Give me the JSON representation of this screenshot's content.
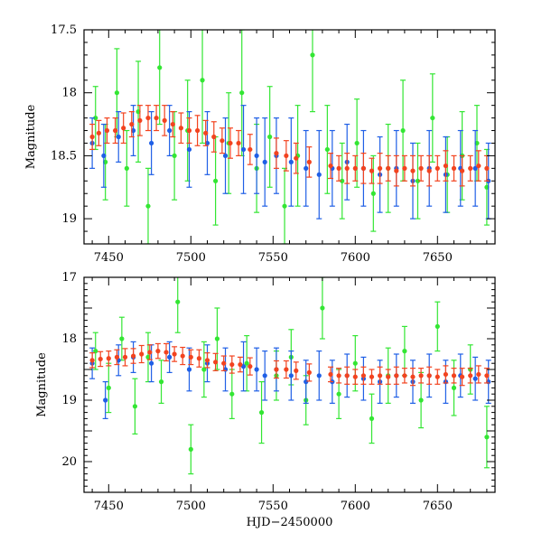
{
  "chart_data": [
    {
      "type": "scatter",
      "title": "",
      "xlabel": "",
      "ylabel": "Magnitude",
      "xlim": [
        7435,
        7685
      ],
      "ylim": [
        19.2,
        17.5
      ],
      "y_inverted": true,
      "error_bars": true,
      "grid": false,
      "x_ticks": [
        7450,
        7500,
        7550,
        7600,
        7650
      ],
      "x_tick_labels": [
        "7450",
        "7500",
        "7550",
        "7600",
        "7650"
      ],
      "y_ticks": [
        17.5,
        18,
        18.5,
        19
      ],
      "y_tick_labels": [
        "17.5",
        "18",
        "18.5",
        "19"
      ],
      "series": [
        {
          "color": "#33e633",
          "x": [
            7442,
            7448,
            7455,
            7461,
            7468,
            7474,
            7481,
            7490,
            7498,
            7507,
            7515,
            7523,
            7531,
            7540,
            7548,
            7557,
            7565,
            7574,
            7583,
            7592,
            7601,
            7611,
            7620,
            7629,
            7638,
            7647,
            7656,
            7665,
            7674,
            7680
          ],
          "y": [
            18.2,
            18.55,
            18.0,
            18.6,
            18.15,
            18.9,
            17.8,
            18.5,
            18.3,
            17.9,
            18.7,
            18.4,
            18.0,
            18.6,
            18.35,
            18.9,
            18.5,
            17.7,
            18.45,
            18.7,
            18.4,
            18.8,
            18.6,
            18.3,
            18.7,
            18.2,
            18.65,
            18.5,
            18.4,
            18.75
          ],
          "yerr": [
            0.25,
            0.3,
            0.35,
            0.3,
            0.4,
            0.3,
            0.45,
            0.35,
            0.4,
            0.5,
            0.35,
            0.4,
            0.5,
            0.35,
            0.4,
            0.3,
            0.4,
            0.45,
            0.35,
            0.3,
            0.35,
            0.3,
            0.35,
            0.4,
            0.3,
            0.35,
            0.3,
            0.35,
            0.3,
            0.3
          ]
        },
        {
          "color": "#1f5fe6",
          "x": [
            7440,
            7447,
            7456,
            7465,
            7476,
            7487,
            7499,
            7510,
            7521,
            7532,
            7540,
            7545,
            7552,
            7561,
            7570,
            7578,
            7586,
            7595,
            7605,
            7615,
            7625,
            7635,
            7645,
            7655,
            7664,
            7673,
            7681
          ],
          "y": [
            18.4,
            18.5,
            18.35,
            18.3,
            18.4,
            18.3,
            18.45,
            18.4,
            18.5,
            18.45,
            18.5,
            18.55,
            18.5,
            18.55,
            18.6,
            18.65,
            18.6,
            18.55,
            18.6,
            18.65,
            18.6,
            18.7,
            18.6,
            18.65,
            18.6,
            18.6,
            18.7
          ],
          "yerr": [
            0.2,
            0.25,
            0.2,
            0.2,
            0.25,
            0.2,
            0.3,
            0.25,
            0.3,
            0.35,
            0.3,
            0.35,
            0.3,
            0.35,
            0.3,
            0.35,
            0.3,
            0.3,
            0.3,
            0.3,
            0.3,
            0.3,
            0.3,
            0.3,
            0.3,
            0.3,
            0.3
          ]
        },
        {
          "color": "#f2431f",
          "x": [
            7440,
            7444,
            7449,
            7454,
            7459,
            7464,
            7469,
            7474,
            7479,
            7484,
            7489,
            7494,
            7499,
            7504,
            7509,
            7514,
            7519,
            7524,
            7529,
            7536,
            7552,
            7558,
            7564,
            7572,
            7585,
            7590,
            7595,
            7600,
            7605,
            7610,
            7615,
            7620,
            7625,
            7630,
            7635,
            7640,
            7645,
            7650,
            7655,
            7660,
            7665,
            7670,
            7675,
            7680
          ],
          "y": [
            18.35,
            18.32,
            18.3,
            18.3,
            18.28,
            18.25,
            18.22,
            18.2,
            18.2,
            18.22,
            18.25,
            18.28,
            18.3,
            18.3,
            18.32,
            18.35,
            18.38,
            18.4,
            18.4,
            18.45,
            18.48,
            18.5,
            18.52,
            18.55,
            18.58,
            18.6,
            18.6,
            18.6,
            18.6,
            18.62,
            18.6,
            18.6,
            18.62,
            18.6,
            18.62,
            18.6,
            18.62,
            18.6,
            18.58,
            18.6,
            18.62,
            18.6,
            18.58,
            18.6
          ],
          "yerr": [
            0.1,
            0.1,
            0.1,
            0.1,
            0.12,
            0.1,
            0.12,
            0.1,
            0.1,
            0.12,
            0.1,
            0.12,
            0.1,
            0.12,
            0.1,
            0.12,
            0.1,
            0.12,
            0.1,
            0.12,
            0.12,
            0.12,
            0.12,
            0.12,
            0.1,
            0.1,
            0.12,
            0.1,
            0.12,
            0.1,
            0.12,
            0.1,
            0.12,
            0.1,
            0.12,
            0.1,
            0.12,
            0.1,
            0.12,
            0.1,
            0.12,
            0.1,
            0.12,
            0.1
          ]
        }
      ]
    },
    {
      "type": "scatter",
      "title": "",
      "xlabel": "HJD−2450000",
      "ylabel": "Magnitude",
      "xlim": [
        7435,
        7685
      ],
      "ylim": [
        20.5,
        17.0
      ],
      "y_inverted": true,
      "error_bars": true,
      "grid": false,
      "x_ticks": [
        7450,
        7500,
        7550,
        7600,
        7650
      ],
      "x_tick_labels": [
        "7450",
        "7500",
        "7550",
        "7600",
        "7650"
      ],
      "y_ticks": [
        17,
        18,
        19,
        20
      ],
      "y_tick_labels": [
        "17",
        "18",
        "19",
        "20"
      ],
      "series": [
        {
          "color": "#33e633",
          "x": [
            7442,
            7450,
            7458,
            7466,
            7474,
            7482,
            7492,
            7500,
            7508,
            7516,
            7525,
            7534,
            7543,
            7552,
            7561,
            7570,
            7580,
            7590,
            7600,
            7610,
            7620,
            7630,
            7640,
            7650,
            7660,
            7670,
            7680
          ],
          "y": [
            18.2,
            18.8,
            18.0,
            19.1,
            18.3,
            18.7,
            17.4,
            19.8,
            18.5,
            18.0,
            18.9,
            18.4,
            19.2,
            18.6,
            18.3,
            19.0,
            17.5,
            18.9,
            18.4,
            19.3,
            18.6,
            18.2,
            19.0,
            17.8,
            18.8,
            18.5,
            19.6
          ],
          "yerr": [
            0.3,
            0.4,
            0.35,
            0.45,
            0.4,
            0.35,
            0.5,
            0.4,
            0.45,
            0.5,
            0.4,
            0.45,
            0.5,
            0.4,
            0.45,
            0.4,
            0.5,
            0.4,
            0.45,
            0.4,
            0.45,
            0.4,
            0.45,
            0.4,
            0.45,
            0.4,
            0.5
          ]
        },
        {
          "color": "#1f5fe6",
          "x": [
            7440,
            7448,
            7456,
            7465,
            7476,
            7487,
            7499,
            7510,
            7521,
            7532,
            7540,
            7545,
            7552,
            7561,
            7570,
            7578,
            7586,
            7595,
            7605,
            7615,
            7625,
            7635,
            7645,
            7655,
            7664,
            7673,
            7681
          ],
          "y": [
            18.4,
            19.0,
            18.35,
            18.3,
            18.4,
            18.3,
            18.5,
            18.4,
            18.5,
            18.45,
            18.5,
            18.6,
            18.5,
            18.6,
            18.7,
            18.6,
            18.7,
            18.6,
            18.65,
            18.7,
            18.6,
            18.7,
            18.6,
            18.7,
            18.6,
            18.65,
            18.7
          ],
          "yerr": [
            0.25,
            0.3,
            0.25,
            0.25,
            0.3,
            0.25,
            0.35,
            0.3,
            0.35,
            0.4,
            0.35,
            0.4,
            0.35,
            0.4,
            0.35,
            0.4,
            0.35,
            0.35,
            0.35,
            0.35,
            0.35,
            0.35,
            0.35,
            0.35,
            0.35,
            0.35,
            0.35
          ]
        },
        {
          "color": "#f2431f",
          "x": [
            7440,
            7445,
            7450,
            7455,
            7460,
            7465,
            7470,
            7475,
            7480,
            7485,
            7490,
            7495,
            7500,
            7505,
            7510,
            7515,
            7520,
            7525,
            7530,
            7536,
            7552,
            7558,
            7564,
            7572,
            7585,
            7590,
            7595,
            7600,
            7605,
            7610,
            7615,
            7620,
            7625,
            7630,
            7635,
            7640,
            7645,
            7650,
            7655,
            7660,
            7665,
            7670,
            7675,
            7680
          ],
          "y": [
            18.35,
            18.33,
            18.32,
            18.3,
            18.3,
            18.28,
            18.25,
            18.22,
            18.2,
            18.22,
            18.25,
            18.28,
            18.3,
            18.32,
            18.35,
            18.38,
            18.4,
            18.42,
            18.42,
            18.45,
            18.5,
            18.5,
            18.52,
            18.55,
            18.58,
            18.6,
            18.6,
            18.62,
            18.6,
            18.62,
            18.6,
            18.62,
            18.6,
            18.6,
            18.62,
            18.6,
            18.6,
            18.62,
            18.58,
            18.6,
            18.62,
            18.6,
            18.58,
            18.6
          ],
          "yerr": [
            0.12,
            0.12,
            0.12,
            0.12,
            0.14,
            0.12,
            0.14,
            0.12,
            0.12,
            0.14,
            0.12,
            0.14,
            0.12,
            0.14,
            0.12,
            0.14,
            0.12,
            0.14,
            0.12,
            0.14,
            0.14,
            0.14,
            0.14,
            0.14,
            0.12,
            0.12,
            0.14,
            0.12,
            0.14,
            0.12,
            0.14,
            0.12,
            0.14,
            0.12,
            0.14,
            0.12,
            0.14,
            0.12,
            0.14,
            0.12,
            0.14,
            0.12,
            0.14,
            0.12
          ]
        }
      ]
    }
  ]
}
